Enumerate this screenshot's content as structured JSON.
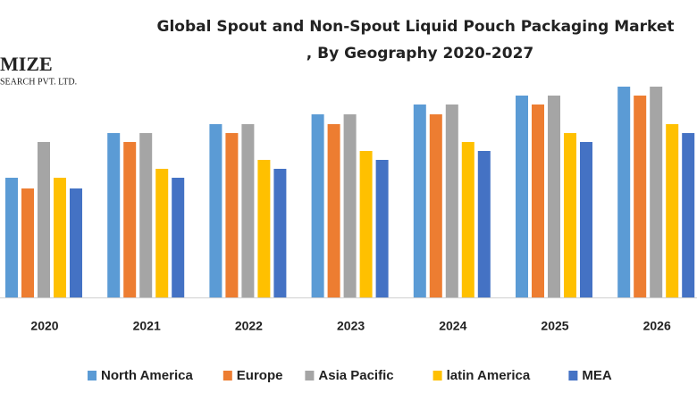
{
  "chart_data": {
    "type": "bar",
    "title": [
      "Global Spout and Non-Spout Liquid Pouch Packaging Market",
      ", By Geography 2020-2027"
    ],
    "logo": [
      "MIZE",
      "SEARCH PVT. LTD."
    ],
    "categories": [
      "2020",
      "2021",
      "2022",
      "2023",
      "2024",
      "2025",
      "2026"
    ],
    "series": [
      {
        "name": "North America",
        "color": "#5b9bd5",
        "values": [
          134,
          184,
          194,
          205,
          216,
          226,
          236
        ]
      },
      {
        "name": "Europe",
        "color": "#ed7d31",
        "values": [
          122,
          174,
          184,
          194,
          205,
          216,
          226
        ]
      },
      {
        "name": "Asia Pacific",
        "color": "#a5a5a5",
        "values": [
          174,
          184,
          194,
          205,
          216,
          226,
          236
        ]
      },
      {
        "name": "latin America",
        "color": "#ffc000",
        "values": [
          134,
          144,
          154,
          164,
          174,
          184,
          194
        ]
      },
      {
        "name": "MEA",
        "color": "#4472c4",
        "values": [
          122,
          134,
          144,
          154,
          164,
          174,
          184
        ]
      }
    ],
    "legend": "bottom"
  }
}
